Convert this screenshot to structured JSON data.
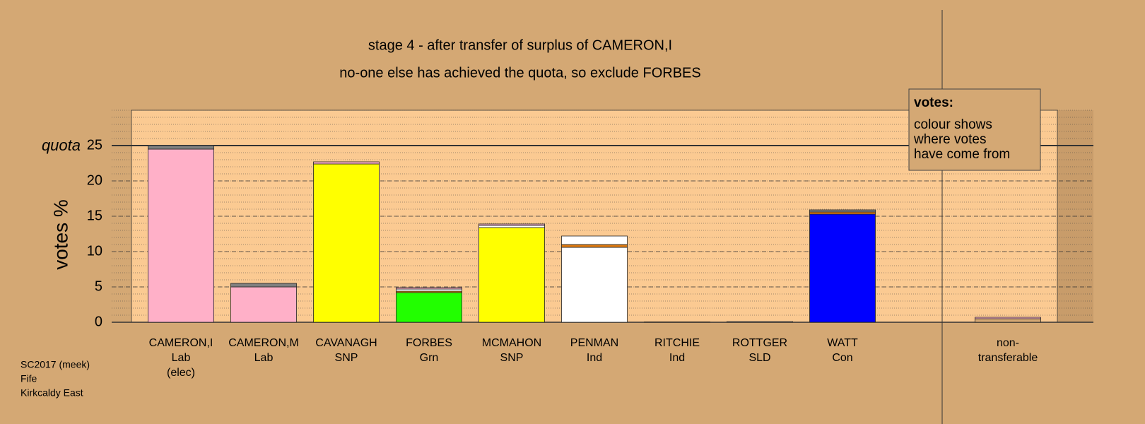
{
  "chart_data": {
    "type": "stacked-bar",
    "title": "stage 4 - after transfer of surplus of CAMERON,I",
    "subtitle": "no-one else has achieved the quota, so exclude FORBES",
    "ylabel": "votes %",
    "categories": [
      [
        "CAMERON,I",
        "Lab",
        "(elec)"
      ],
      [
        "CAMERON,M",
        "Lab"
      ],
      [
        "CAVANAGH",
        "SNP"
      ],
      [
        "FORBES",
        "Grn"
      ],
      [
        "MCMAHON",
        "SNP"
      ],
      [
        "PENMAN",
        "Ind"
      ],
      [
        "RITCHIE",
        "Ind"
      ],
      [
        "ROTTGER",
        "SLD"
      ],
      [
        "WATT",
        "Con"
      ],
      [
        "non-",
        "transferable"
      ]
    ],
    "segments": [
      [
        {
          "value": 24.5,
          "color": "#ffb0c8"
        },
        {
          "value": 0.5,
          "color": "#808080"
        }
      ],
      [
        {
          "value": 5.0,
          "color": "#ffb0c8"
        },
        {
          "value": 0.5,
          "color": "#808080"
        }
      ],
      [
        {
          "value": 22.4,
          "color": "#ffff00"
        },
        {
          "value": 0.3,
          "color": "#ffb0c8"
        }
      ],
      [
        {
          "value": 4.2,
          "color": "#22ff00"
        },
        {
          "value": 0.2,
          "color": "#e07b10"
        },
        {
          "value": 0.3,
          "color": "#ffffff"
        },
        {
          "value": 0.2,
          "color": "#ffb0c8"
        }
      ],
      [
        {
          "value": 13.4,
          "color": "#ffff00"
        },
        {
          "value": 0.3,
          "color": "#ffffff"
        },
        {
          "value": 0.2,
          "color": "#ffb0c8"
        }
      ],
      [
        {
          "value": 10.6,
          "color": "#ffffff"
        },
        {
          "value": 0.4,
          "color": "#e07b10"
        },
        {
          "value": 1.2,
          "color": "#ffffff"
        }
      ],
      [
        {
          "value": 0.05,
          "color": "#ffffff"
        }
      ],
      [
        {
          "value": 0.1,
          "color": "#ffffff"
        }
      ],
      [
        {
          "value": 15.3,
          "color": "#0000ff"
        },
        {
          "value": 0.3,
          "color": "#e07b10"
        },
        {
          "value": 0.3,
          "color": "#808080"
        }
      ],
      [
        {
          "value": 0.5,
          "color": "#d4a874"
        },
        {
          "value": 0.2,
          "color": "#ffb0c8"
        }
      ]
    ],
    "ylim": [
      0,
      30
    ],
    "yticks": [
      0,
      5,
      10,
      15,
      20,
      25
    ],
    "minor_grid_step": 1,
    "quota": {
      "label": "quota",
      "value": 25
    },
    "legend": {
      "title": "votes:",
      "lines": [
        "colour shows",
        "where votes",
        "have come from"
      ]
    },
    "footer": [
      "SC2017 (meek)",
      "Fife",
      "Kirkcaldy East"
    ]
  }
}
